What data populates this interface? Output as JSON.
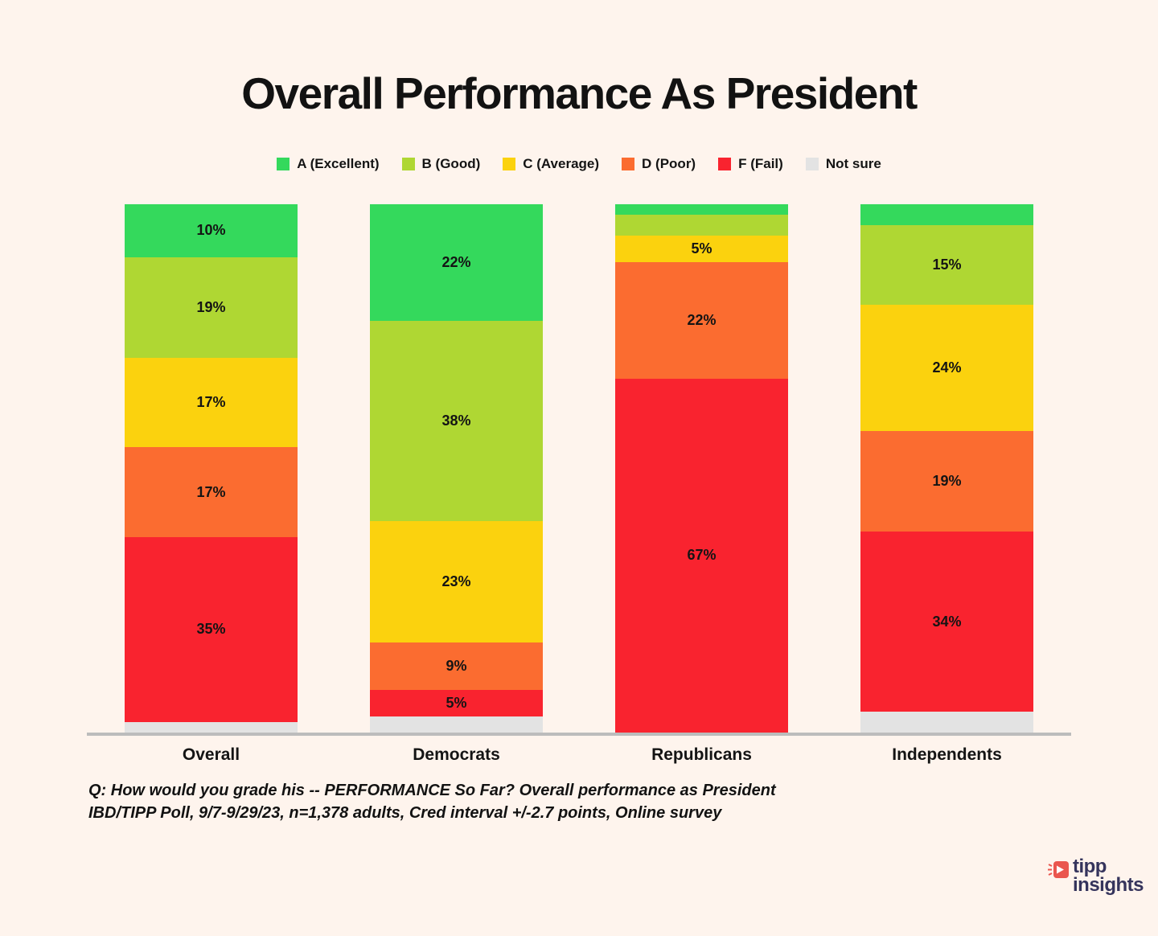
{
  "title": "Overall Performance As President",
  "legend": {
    "items": [
      {
        "label": "A (Excellent)",
        "color": "#34D95C"
      },
      {
        "label": "B (Good)",
        "color": "#AFD733"
      },
      {
        "label": "C (Average)",
        "color": "#FBD20E"
      },
      {
        "label": "D (Poor)",
        "color": "#FB6C30"
      },
      {
        "label": "F (Fail)",
        "color": "#F9232F"
      },
      {
        "label": "Not sure",
        "color": "#E3E3E3"
      }
    ]
  },
  "chart_data": {
    "type": "bar",
    "variant": "stacked-vertical",
    "categories": [
      "Overall",
      "Democrats",
      "Republicans",
      "Independents"
    ],
    "series": [
      {
        "name": "A (Excellent)",
        "color": "#34D95C",
        "values": [
          10,
          22,
          2,
          4
        ]
      },
      {
        "name": "B (Good)",
        "color": "#AFD733",
        "values": [
          19,
          38,
          4,
          15
        ]
      },
      {
        "name": "C (Average)",
        "color": "#FBD20E",
        "values": [
          17,
          23,
          5,
          24
        ]
      },
      {
        "name": "D (Poor)",
        "color": "#FB6C30",
        "values": [
          17,
          9,
          22,
          19
        ]
      },
      {
        "name": "F (Fail)",
        "color": "#F9232F",
        "values": [
          35,
          5,
          67,
          34
        ]
      },
      {
        "name": "Not sure",
        "color": "#E3E3E3",
        "values": [
          2,
          3,
          0,
          4
        ]
      }
    ],
    "data_label_format": "{value}%",
    "data_label_min_value_shown": 5,
    "ylim": [
      0,
      100
    ],
    "grid": false,
    "legend_position": "top",
    "axis_line_color": "#BCBCBC",
    "background_color": "#FEF4ED"
  },
  "footer": {
    "line1": "Q:  How would you grade his -- PERFORMANCE So Far? Overall performance as President",
    "line2": "IBD/TIPP Poll, 9/7-9/29/23, n=1,378 adults, Cred interval +/-2.7 points, Online survey"
  },
  "logo": {
    "word1": "tipp",
    "word2": "insights",
    "icon_color": "#EA564E",
    "text_color": "#35345C"
  }
}
